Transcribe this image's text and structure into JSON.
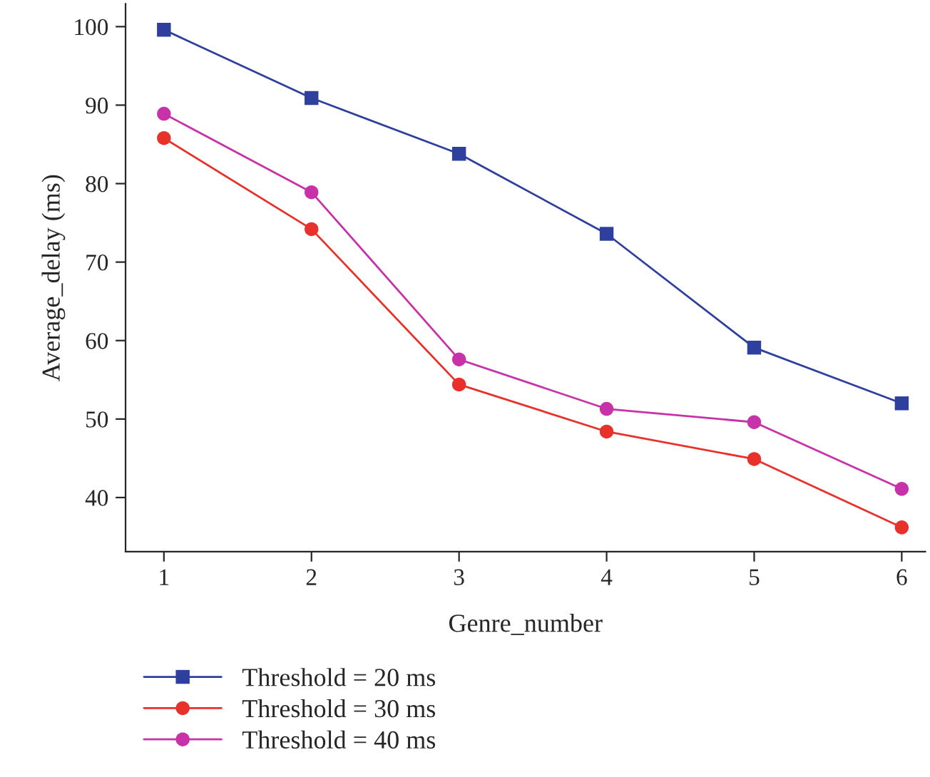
{
  "chart_data": {
    "type": "line",
    "xlabel": "Genre_number",
    "ylabel": "Average_delay (ms)",
    "x": [
      1,
      2,
      3,
      4,
      5,
      6
    ],
    "series": [
      {
        "name": "Threshold = 20 ms",
        "color": "#2e3f9e",
        "marker": "square",
        "values": [
          99.6,
          90.9,
          83.8,
          73.6,
          59.1,
          52.0
        ]
      },
      {
        "name": "Threshold = 30 ms",
        "color": "#e8312a",
        "marker": "circle",
        "values": [
          85.8,
          74.2,
          54.4,
          48.4,
          44.9,
          36.2
        ]
      },
      {
        "name": "Threshold = 40 ms",
        "color": "#c832a8",
        "marker": "circle",
        "values": [
          88.9,
          78.9,
          57.6,
          51.3,
          49.6,
          41.1
        ]
      }
    ],
    "xlim": [
      0.74,
      6.16
    ],
    "xticks": [
      1,
      2,
      3,
      4,
      5,
      6
    ],
    "ylim": [
      33.1,
      102.9
    ],
    "yticks": [
      40,
      50,
      60,
      70,
      80,
      90,
      100
    ],
    "grid": false,
    "legend": "bottom left",
    "line_style": "solid"
  }
}
